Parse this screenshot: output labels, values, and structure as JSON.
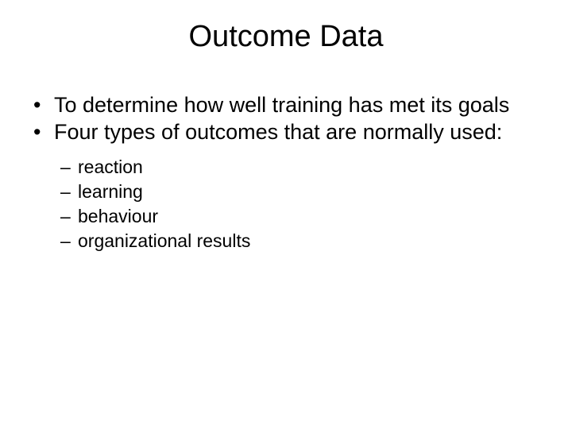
{
  "slide": {
    "title": "Outcome Data",
    "title_fontsize": 38,
    "title_color": "#000000",
    "background_color": "#ffffff",
    "text_color": "#000000",
    "font_family": "Arial",
    "bullets_level1": [
      "To determine how well training has met its goals",
      "Four types of outcomes that are normally used:"
    ],
    "level1_fontsize": 27,
    "level1_bullet_glyph": "•",
    "bullets_level2": [
      "reaction",
      "learning",
      "behaviour",
      "organizational results"
    ],
    "level2_fontsize": 23,
    "level2_bullet_glyph": "–"
  }
}
